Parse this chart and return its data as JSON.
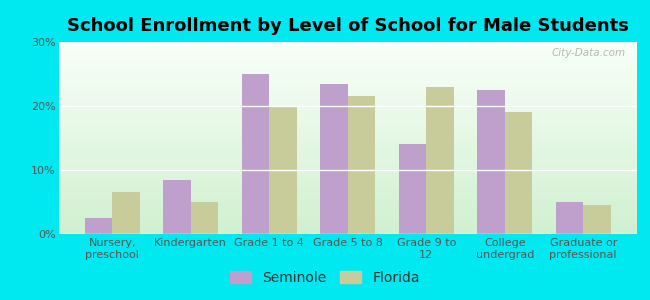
{
  "title": "School Enrollment by Level of School for Male Students",
  "categories": [
    "Nursery,\npreschool",
    "Kindergarten",
    "Grade 1 to 4",
    "Grade 5 to 8",
    "Grade 9 to\n12",
    "College\nundergrad",
    "Graduate or\nprofessional"
  ],
  "seminole": [
    2.5,
    8.5,
    25.0,
    23.5,
    14.0,
    22.5,
    5.0
  ],
  "florida": [
    6.5,
    5.0,
    20.0,
    21.5,
    23.0,
    19.0,
    4.5
  ],
  "seminole_color": "#bf9fcc",
  "florida_color": "#c8cc9a",
  "background_outer": "#00e8f0",
  "background_inner_top": "#f0fff0",
  "background_inner_bottom": "#d4f0d4",
  "ylim": [
    0,
    30
  ],
  "yticks": [
    0,
    10,
    20,
    30
  ],
  "ytick_labels": [
    "0%",
    "10%",
    "20%",
    "30%"
  ],
  "bar_width": 0.35,
  "legend_labels": [
    "Seminole",
    "Florida"
  ],
  "title_fontsize": 13,
  "tick_fontsize": 8,
  "legend_fontsize": 10,
  "watermark": "City-Data.com"
}
